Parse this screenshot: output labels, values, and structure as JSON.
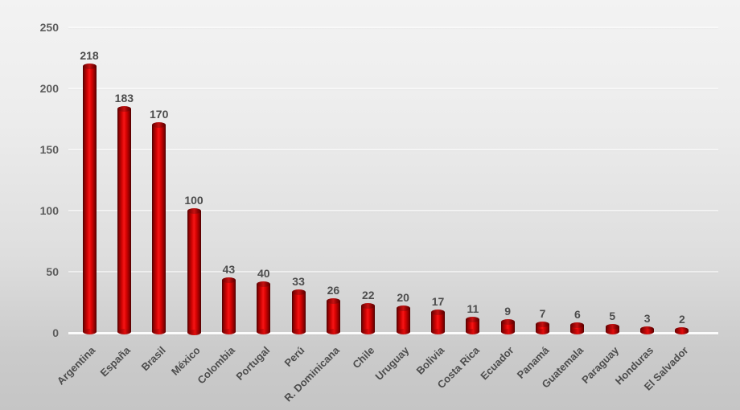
{
  "chart_data": {
    "type": "bar",
    "orientation": "vertical",
    "categories": [
      "Argentina",
      "España",
      "Brasil",
      "México",
      "Colombia",
      "Portugal",
      "Perú",
      "R. Dominicana",
      "Chile",
      "Uruguay",
      "Bolivia",
      "Costa Rica",
      "Ecuador",
      "Panamá",
      "Guatemala",
      "Paraguay",
      "Honduras",
      "El Salvador"
    ],
    "values": [
      218,
      183,
      170,
      100,
      43,
      40,
      33,
      26,
      22,
      20,
      17,
      11,
      9,
      7,
      6,
      5,
      3,
      2
    ],
    "bar_value_labels": [
      218,
      183,
      170,
      100,
      43,
      40,
      33,
      26,
      22,
      20,
      17,
      11,
      9,
      7,
      6,
      5,
      3,
      2
    ],
    "ylim": [
      0,
      250
    ],
    "yticks": [
      0,
      50,
      100,
      150,
      200,
      250
    ],
    "grid": "horizontal",
    "legend": "none",
    "x_tick_rotation_deg": 45,
    "bar_style": "3d-cylinder"
  },
  "colors": {
    "bar_main": "#e30505",
    "bar_highlight": "#f51616",
    "bar_edge_dark": "#4e0101",
    "bar_cap": "#a30808",
    "background_top": "#f3f3f3",
    "background_bottom": "#c5c5c5",
    "gridline": "rgba(255,255,255,0.55)",
    "baseline": "rgba(255,255,255,0.92)",
    "axis_tick_text": "#5d5d5d",
    "value_label_text": "#4d4d4d",
    "category_label_text": "#4d4d4d"
  }
}
